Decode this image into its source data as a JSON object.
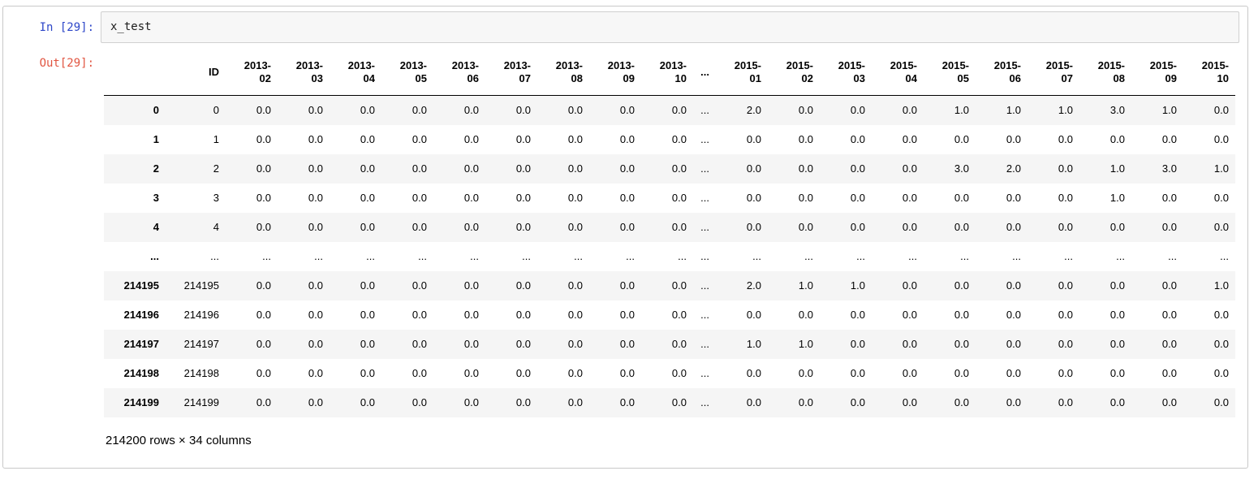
{
  "cell": {
    "in_prompt": "In [29]:",
    "out_prompt": "Out[29]:",
    "code": "x_test"
  },
  "colors": {
    "in_prompt": "#2d46c8",
    "out_prompt": "#e15541",
    "row_stripe": "#f5f5f5",
    "header_rule": "#000000",
    "code_box_bg": "#f7f7f7",
    "cell_border": "#c8c8c8"
  },
  "dataframe": {
    "index_header": "",
    "columns": [
      "ID",
      "2013-02",
      "2013-03",
      "2013-04",
      "2013-05",
      "2013-06",
      "2013-07",
      "2013-08",
      "2013-09",
      "2013-10",
      "...",
      "2015-01",
      "2015-02",
      "2015-03",
      "2015-04",
      "2015-05",
      "2015-06",
      "2015-07",
      "2015-08",
      "2015-09",
      "2015-10"
    ],
    "rows": [
      {
        "index": "0",
        "cells": [
          "0",
          "0.0",
          "0.0",
          "0.0",
          "0.0",
          "0.0",
          "0.0",
          "0.0",
          "0.0",
          "0.0",
          "...",
          "2.0",
          "0.0",
          "0.0",
          "0.0",
          "1.0",
          "1.0",
          "1.0",
          "3.0",
          "1.0",
          "0.0"
        ]
      },
      {
        "index": "1",
        "cells": [
          "1",
          "0.0",
          "0.0",
          "0.0",
          "0.0",
          "0.0",
          "0.0",
          "0.0",
          "0.0",
          "0.0",
          "...",
          "0.0",
          "0.0",
          "0.0",
          "0.0",
          "0.0",
          "0.0",
          "0.0",
          "0.0",
          "0.0",
          "0.0"
        ]
      },
      {
        "index": "2",
        "cells": [
          "2",
          "0.0",
          "0.0",
          "0.0",
          "0.0",
          "0.0",
          "0.0",
          "0.0",
          "0.0",
          "0.0",
          "...",
          "0.0",
          "0.0",
          "0.0",
          "0.0",
          "3.0",
          "2.0",
          "0.0",
          "1.0",
          "3.0",
          "1.0"
        ]
      },
      {
        "index": "3",
        "cells": [
          "3",
          "0.0",
          "0.0",
          "0.0",
          "0.0",
          "0.0",
          "0.0",
          "0.0",
          "0.0",
          "0.0",
          "...",
          "0.0",
          "0.0",
          "0.0",
          "0.0",
          "0.0",
          "0.0",
          "0.0",
          "1.0",
          "0.0",
          "0.0"
        ]
      },
      {
        "index": "4",
        "cells": [
          "4",
          "0.0",
          "0.0",
          "0.0",
          "0.0",
          "0.0",
          "0.0",
          "0.0",
          "0.0",
          "0.0",
          "...",
          "0.0",
          "0.0",
          "0.0",
          "0.0",
          "0.0",
          "0.0",
          "0.0",
          "0.0",
          "0.0",
          "0.0"
        ]
      },
      {
        "index": "...",
        "cells": [
          "...",
          "...",
          "...",
          "...",
          "...",
          "...",
          "...",
          "...",
          "...",
          "...",
          "...",
          "...",
          "...",
          "...",
          "...",
          "...",
          "...",
          "...",
          "...",
          "...",
          "..."
        ]
      },
      {
        "index": "214195",
        "cells": [
          "214195",
          "0.0",
          "0.0",
          "0.0",
          "0.0",
          "0.0",
          "0.0",
          "0.0",
          "0.0",
          "0.0",
          "...",
          "2.0",
          "1.0",
          "1.0",
          "0.0",
          "0.0",
          "0.0",
          "0.0",
          "0.0",
          "0.0",
          "1.0"
        ]
      },
      {
        "index": "214196",
        "cells": [
          "214196",
          "0.0",
          "0.0",
          "0.0",
          "0.0",
          "0.0",
          "0.0",
          "0.0",
          "0.0",
          "0.0",
          "...",
          "0.0",
          "0.0",
          "0.0",
          "0.0",
          "0.0",
          "0.0",
          "0.0",
          "0.0",
          "0.0",
          "0.0"
        ]
      },
      {
        "index": "214197",
        "cells": [
          "214197",
          "0.0",
          "0.0",
          "0.0",
          "0.0",
          "0.0",
          "0.0",
          "0.0",
          "0.0",
          "0.0",
          "...",
          "1.0",
          "1.0",
          "0.0",
          "0.0",
          "0.0",
          "0.0",
          "0.0",
          "0.0",
          "0.0",
          "0.0"
        ]
      },
      {
        "index": "214198",
        "cells": [
          "214198",
          "0.0",
          "0.0",
          "0.0",
          "0.0",
          "0.0",
          "0.0",
          "0.0",
          "0.0",
          "0.0",
          "...",
          "0.0",
          "0.0",
          "0.0",
          "0.0",
          "0.0",
          "0.0",
          "0.0",
          "0.0",
          "0.0",
          "0.0"
        ]
      },
      {
        "index": "214199",
        "cells": [
          "214199",
          "0.0",
          "0.0",
          "0.0",
          "0.0",
          "0.0",
          "0.0",
          "0.0",
          "0.0",
          "0.0",
          "...",
          "0.0",
          "0.0",
          "0.0",
          "0.0",
          "0.0",
          "0.0",
          "0.0",
          "0.0",
          "0.0",
          "0.0"
        ]
      }
    ],
    "summary": "214200 rows × 34 columns"
  }
}
